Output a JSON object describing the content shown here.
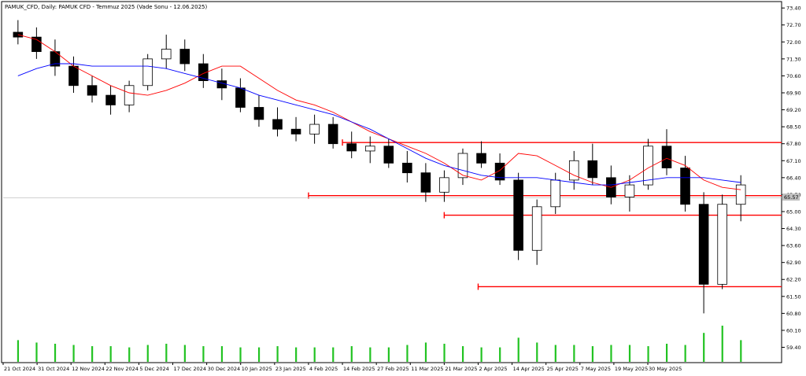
{
  "chart_data": {
    "type": "candlestick",
    "title": "PAMUK_CFD, Daily: PAMUK CFD - Temmuz 2025 (Vade Sonu - 12.06.2025)",
    "ylim": [
      58.8,
      73.6
    ],
    "y_ticks": [
      "73.40",
      "72.70",
      "72.00",
      "71.30",
      "70.60",
      "69.90",
      "69.20",
      "68.50",
      "67.80",
      "67.10",
      "66.40",
      "65.70",
      "65.00",
      "64.30",
      "63.60",
      "62.90",
      "62.20",
      "61.50",
      "60.80",
      "60.10",
      "59.40"
    ],
    "x_ticks": [
      "21 Oct 2024",
      "31 Oct 2024",
      "12 Nov 2024",
      "22 Nov 2024",
      "5 Dec 2024",
      "17 Dec 2024",
      "30 Dec 2024",
      "10 Jan 2025",
      "23 Jan 2025",
      "4 Feb 2025",
      "14 Feb 2025",
      "27 Feb 2025",
      "11 Mar 2025",
      "21 Mar 2025",
      "2 Apr 2025",
      "14 Apr 2025",
      "25 Apr 2025",
      "7 May 2025",
      "19 May 2025",
      "30 May 2025"
    ],
    "current_price_label": "65.57",
    "horizontal_levels": [
      {
        "price": 67.85,
        "from_date": "14 Feb 2025",
        "color": "#ff0000"
      },
      {
        "price": 65.66,
        "from_date": "4 Feb 2025",
        "color": "#ff0000"
      },
      {
        "price": 64.85,
        "from_date": "21 Mar 2025",
        "color": "#ff0000"
      },
      {
        "price": 61.9,
        "from_date": "2 Apr 2025",
        "color": "#ff0000"
      }
    ],
    "series": [
      {
        "name": "MA fast",
        "color": "#ff0000",
        "values": [
          72.3,
          72.1,
          71.6,
          71.0,
          70.6,
          70.2,
          69.9,
          69.8,
          70.0,
          70.3,
          70.7,
          71.0,
          71.0,
          70.5,
          70.0,
          69.6,
          69.4,
          69.1,
          68.7,
          68.3,
          68.0,
          67.7,
          67.4,
          67.0,
          66.5,
          66.3,
          66.7,
          67.4,
          67.3,
          66.9,
          66.5,
          66.2,
          66.0,
          66.3,
          66.8,
          67.2,
          66.9,
          66.3,
          66.0,
          65.9
        ]
      },
      {
        "name": "MA slow",
        "color": "#0000ff",
        "values": [
          70.6,
          70.9,
          71.1,
          71.1,
          71.0,
          71.0,
          71.0,
          71.0,
          70.9,
          70.7,
          70.5,
          70.3,
          70.1,
          69.8,
          69.6,
          69.4,
          69.2,
          69.0,
          68.7,
          68.4,
          68.0,
          67.6,
          67.2,
          66.9,
          66.7,
          66.5,
          66.4,
          66.4,
          66.4,
          66.3,
          66.2,
          66.1,
          66.1,
          66.2,
          66.3,
          66.4,
          66.4,
          66.4,
          66.3,
          66.2
        ]
      }
    ],
    "candles_ohlc": [
      [
        72.4,
        72.9,
        71.9,
        72.2
      ],
      [
        72.2,
        72.6,
        71.3,
        71.6
      ],
      [
        71.6,
        72.1,
        70.6,
        71.0
      ],
      [
        71.0,
        71.4,
        69.9,
        70.2
      ],
      [
        70.2,
        70.6,
        69.5,
        69.8
      ],
      [
        69.8,
        70.2,
        69.0,
        69.4
      ],
      [
        69.4,
        70.4,
        69.1,
        70.2
      ],
      [
        70.2,
        71.5,
        70.0,
        71.3
      ],
      [
        71.3,
        72.3,
        70.9,
        71.7
      ],
      [
        71.7,
        72.1,
        70.8,
        71.1
      ],
      [
        71.1,
        71.5,
        70.1,
        70.4
      ],
      [
        70.4,
        70.9,
        69.6,
        70.1
      ],
      [
        70.1,
        70.5,
        69.1,
        69.3
      ],
      [
        69.3,
        69.8,
        68.5,
        68.8
      ],
      [
        68.8,
        69.3,
        68.1,
        68.4
      ],
      [
        68.4,
        68.9,
        67.9,
        68.2
      ],
      [
        68.2,
        69.0,
        67.8,
        68.6
      ],
      [
        68.6,
        68.9,
        67.6,
        67.8
      ],
      [
        67.8,
        68.3,
        67.2,
        67.5
      ],
      [
        67.5,
        68.1,
        67.0,
        67.7
      ],
      [
        67.7,
        68.0,
        66.8,
        67.0
      ],
      [
        67.0,
        67.5,
        66.2,
        66.6
      ],
      [
        66.6,
        67.0,
        65.4,
        65.8
      ],
      [
        65.8,
        66.7,
        65.4,
        66.4
      ],
      [
        66.4,
        67.6,
        66.1,
        67.4
      ],
      [
        67.4,
        67.9,
        66.8,
        67.0
      ],
      [
        67.0,
        67.4,
        66.1,
        66.3
      ],
      [
        66.3,
        66.6,
        63.0,
        63.4
      ],
      [
        63.4,
        65.5,
        62.8,
        65.2
      ],
      [
        65.2,
        66.6,
        64.9,
        66.3
      ],
      [
        66.3,
        67.5,
        65.9,
        67.1
      ],
      [
        67.1,
        67.8,
        66.1,
        66.4
      ],
      [
        66.4,
        66.9,
        65.3,
        65.6
      ],
      [
        65.6,
        66.5,
        65.0,
        66.1
      ],
      [
        66.1,
        68.0,
        65.9,
        67.7
      ],
      [
        67.7,
        68.4,
        66.5,
        66.8
      ],
      [
        66.8,
        67.3,
        65.0,
        65.3
      ],
      [
        65.3,
        65.8,
        60.8,
        62.0
      ],
      [
        62.0,
        65.7,
        61.8,
        65.3
      ],
      [
        65.3,
        66.5,
        64.6,
        66.1
      ]
    ],
    "volume": [
      18,
      16,
      15,
      14,
      13,
      13,
      12,
      14,
      15,
      14,
      13,
      13,
      12,
      12,
      13,
      12,
      12,
      12,
      13,
      12,
      12,
      14,
      16,
      15,
      13,
      12,
      12,
      20,
      16,
      14,
      14,
      13,
      14,
      14,
      13,
      15,
      14,
      24,
      30,
      18
    ]
  }
}
